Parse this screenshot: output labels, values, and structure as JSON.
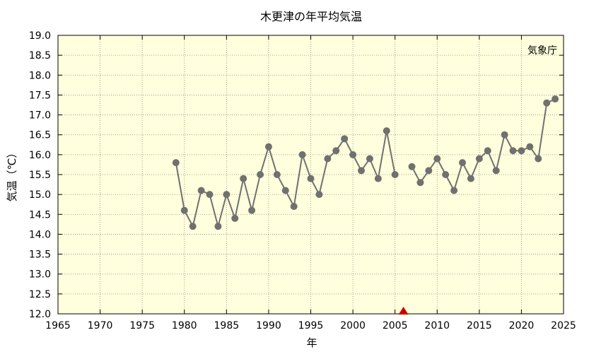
{
  "chart_data": {
    "type": "line",
    "title": "木更津の年平均気温",
    "xlabel": "年",
    "ylabel": "気温（℃）",
    "source": "気象庁",
    "xlim": [
      1965,
      2025
    ],
    "ylim": [
      12.0,
      19.0
    ],
    "x_ticks": [
      "1965",
      "1970",
      "1975",
      "1980",
      "1985",
      "1990",
      "1995",
      "2000",
      "2005",
      "2010",
      "2015",
      "2020",
      "2025"
    ],
    "y_ticks": [
      "12.0",
      "12.5",
      "13.0",
      "13.5",
      "14.0",
      "14.5",
      "15.0",
      "15.5",
      "16.0",
      "16.5",
      "17.0",
      "17.5",
      "18.0",
      "18.5",
      "19.0"
    ],
    "grid": true,
    "series": [
      {
        "color": "#707070",
        "segments": [
          [
            [
              1979,
              15.8
            ],
            [
              1980,
              14.6
            ],
            [
              1981,
              14.2
            ],
            [
              1982,
              15.1
            ],
            [
              1983,
              15.0
            ],
            [
              1984,
              14.2
            ],
            [
              1985,
              15.0
            ],
            [
              1986,
              14.4
            ],
            [
              1987,
              15.4
            ],
            [
              1988,
              14.6
            ],
            [
              1989,
              15.5
            ],
            [
              1990,
              16.2
            ],
            [
              1991,
              15.5
            ],
            [
              1992,
              15.1
            ],
            [
              1993,
              14.7
            ],
            [
              1994,
              16.0
            ],
            [
              1995,
              15.4
            ],
            [
              1996,
              15.0
            ],
            [
              1997,
              15.9
            ],
            [
              1998,
              16.1
            ],
            [
              1999,
              16.4
            ],
            [
              2000,
              16.0
            ],
            [
              2001,
              15.6
            ],
            [
              2002,
              15.9
            ],
            [
              2003,
              15.4
            ],
            [
              2004,
              16.6
            ],
            [
              2005,
              15.5
            ]
          ],
          [
            [
              2007,
              15.7
            ],
            [
              2008,
              15.3
            ],
            [
              2009,
              15.6
            ],
            [
              2010,
              15.9
            ],
            [
              2011,
              15.5
            ],
            [
              2012,
              15.1
            ],
            [
              2013,
              15.8
            ],
            [
              2014,
              15.4
            ],
            [
              2015,
              15.9
            ],
            [
              2016,
              16.1
            ],
            [
              2017,
              15.6
            ],
            [
              2018,
              16.5
            ],
            [
              2019,
              16.1
            ],
            [
              2020,
              16.1
            ],
            [
              2021,
              16.2
            ],
            [
              2022,
              15.9
            ],
            [
              2023,
              17.3
            ],
            [
              2024,
              17.4
            ]
          ]
        ]
      }
    ],
    "markers": [
      {
        "shape": "triangle",
        "color": "#cc0000",
        "x": 2006
      }
    ],
    "colors": {
      "plot_background": "#ffffdd",
      "grid": "#888888"
    }
  }
}
